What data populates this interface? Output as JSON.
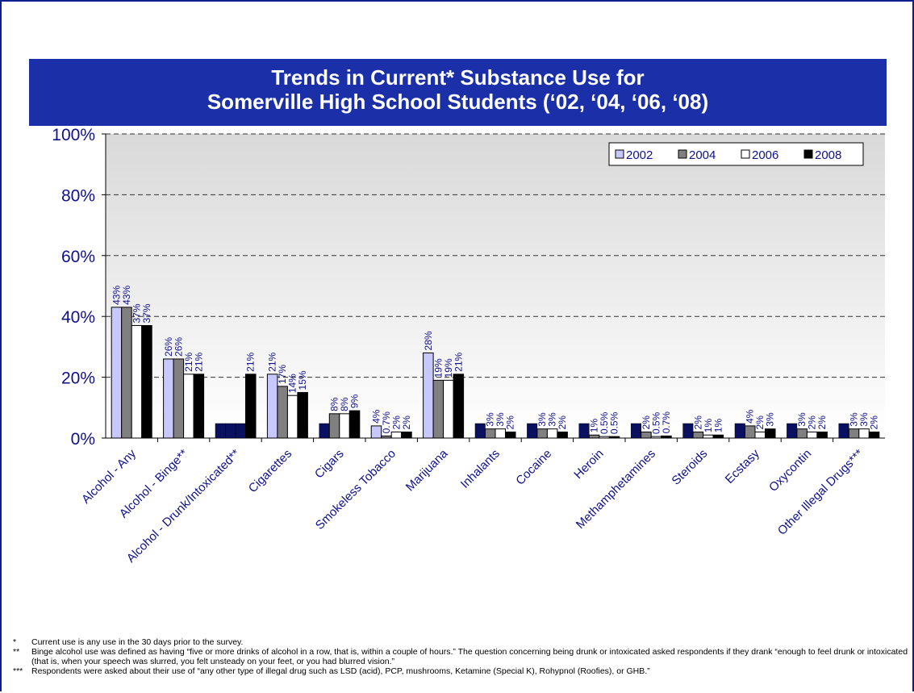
{
  "chart_data": {
    "type": "bar",
    "title_lines": [
      "Trends in Current* Substance Use for",
      "Somerville High School Students (‘02, ‘04, ‘06, ‘08)"
    ],
    "categories": [
      "Alcohol - Any",
      "Alcohol - Binge**",
      "Alcohol - Drunk/Intoxicated**",
      "Cigarettes",
      "Cigars",
      "Smokeless Tobacco",
      "Marijuana",
      "Inhalants",
      "Cocaine",
      "Heroin",
      "Methamphetamines",
      "Steroids",
      "Ecstasy",
      "Oxycontin",
      "Other Illegal Drugs***"
    ],
    "series": [
      {
        "name": "2002",
        "color": "#c6c8ff",
        "values": [
          43,
          26,
          null,
          21,
          null,
          4,
          28,
          null,
          null,
          null,
          null,
          null,
          null,
          null,
          null
        ],
        "labels": [
          "43%",
          "26%",
          "",
          "21%",
          "",
          "4%",
          "28%",
          "",
          "",
          "",
          "",
          "",
          "",
          "",
          ""
        ]
      },
      {
        "name": "2004",
        "color": "#808080",
        "values": [
          43,
          26,
          null,
          17,
          8,
          0.7,
          19,
          3,
          3,
          1,
          2,
          2,
          4,
          3,
          3
        ],
        "labels": [
          "43%",
          "26%",
          "",
          "17%",
          "8%",
          "0.7%",
          "19%",
          "3%",
          "3%",
          "1%",
          "2%",
          "2%",
          "4%",
          "3%",
          "3%"
        ]
      },
      {
        "name": "2006",
        "color": "#ffffff",
        "values": [
          37,
          21,
          null,
          14,
          8,
          2,
          19,
          3,
          3,
          0.5,
          0.5,
          1,
          2,
          2,
          3
        ],
        "labels": [
          "37%",
          "21%",
          "",
          "14%",
          "8%",
          "2%",
          "19%",
          "3%",
          "3%",
          "0.5%",
          "0.5%",
          "1%",
          "2%",
          "2%",
          "3%"
        ]
      },
      {
        "name": "2008",
        "color": "#000000",
        "values": [
          37,
          21,
          21,
          15,
          9,
          2,
          21,
          2,
          2,
          0.5,
          0.7,
          1,
          3,
          2,
          2
        ],
        "labels": [
          "37%",
          "21%",
          "21%",
          "15%",
          "9%",
          "2%",
          "21%",
          "2%",
          "2%",
          "0.5%",
          "0.7%",
          "1%",
          "3%",
          "2%",
          "2%"
        ]
      }
    ],
    "not_asked_marker_color": "#0a1060",
    "y_ticks": [
      "0%",
      "20%",
      "40%",
      "60%",
      "80%",
      "100%"
    ],
    "ylim": [
      0,
      100
    ],
    "grid": true,
    "legend_position": "top-right"
  },
  "footnotes": [
    {
      "mark": "*",
      "text": "Current use is any use in the 30 days prior to the survey."
    },
    {
      "mark": "**",
      "text": "Binge alcohol use was defined as having “five or more drinks of alcohol in a row, that is, within a couple of hours.” The question concerning being drunk or intoxicated asked respondents if they drank “enough to feel drunk or intoxicated (that is, when your speech was slurred, you felt unsteady on your feet, or you had blurred vision.”"
    },
    {
      "mark": "***",
      "text": "Respondents were asked about their use of “any other type of illegal drug such as LSD (acid), PCP, mushrooms, Ketamine (Special K), Rohypnol (Roofies), or GHB.”"
    }
  ]
}
